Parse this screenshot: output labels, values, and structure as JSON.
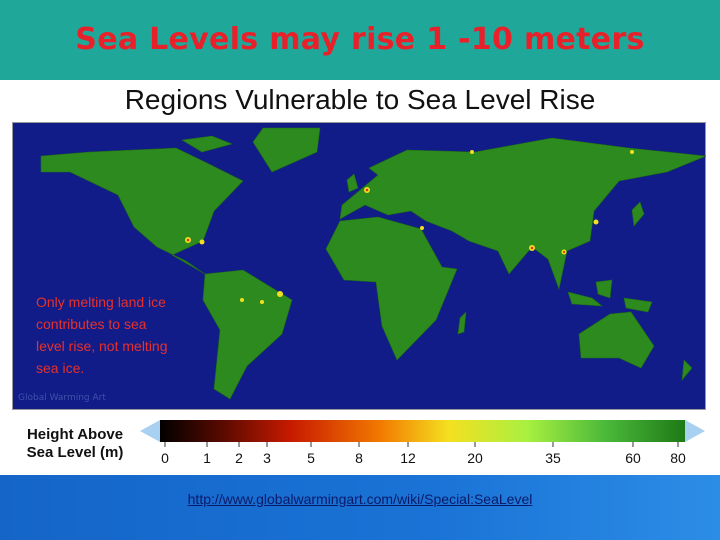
{
  "header": {
    "title": "Sea Levels may rise 1 -10 meters"
  },
  "slide": {
    "heading": "Regions Vulnerable to Sea Level Rise"
  },
  "map": {
    "annotation": "Only melting land ice contributes to sea level rise, not melting sea ice.",
    "credit": "Global Warming Art"
  },
  "legend": {
    "title": "Height Above Sea Level (m)",
    "ticks": [
      0,
      1,
      2,
      3,
      5,
      8,
      12,
      20,
      35,
      60,
      80
    ]
  },
  "footer": {
    "link": "http://www.globalwarmingart.com/wiki/Special:SeaLevel"
  }
}
